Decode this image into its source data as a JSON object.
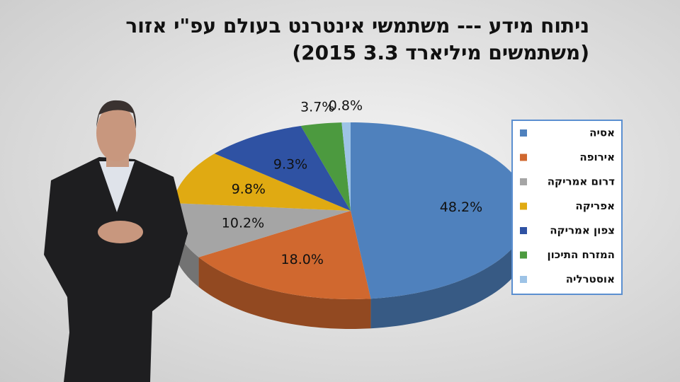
{
  "chart_data": {
    "type": "pie",
    "title": "ניתוח מידע --- משתמשי אינטרנט בעולם עפ\"י אזור",
    "subtitle": "(משתמשים מיליארד 3.3 2015)",
    "categories": [
      "אסיה",
      "אירופה",
      "דרום אמריקה",
      "אפריקה",
      "צפון אמריקה",
      "המזרח התיכון",
      "אוסטרליה"
    ],
    "values": [
      48.2,
      18.0,
      10.2,
      9.8,
      9.3,
      3.7,
      0.8
    ],
    "value_labels": [
      "48.2%",
      "18.0%",
      "10.2%",
      "9.8%",
      "9.3%",
      "3.7%",
      "0.8%"
    ],
    "colors": [
      "#4f81bd",
      "#d0682f",
      "#a5a5a5",
      "#e0aa12",
      "#2f52a3",
      "#4c9a3f",
      "#9dc3e6"
    ]
  }
}
